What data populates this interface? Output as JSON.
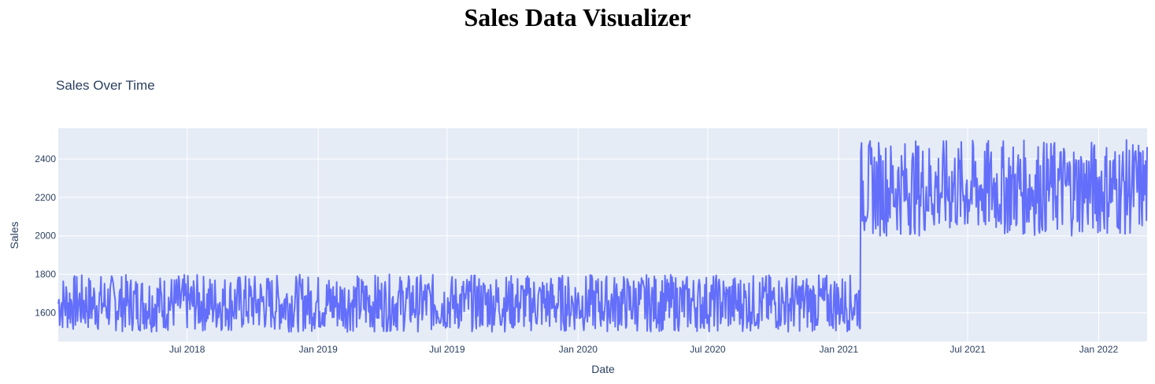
{
  "page": {
    "title": "Sales Data Visualizer"
  },
  "chart_data": {
    "type": "line",
    "title": "Sales Over Time",
    "xlabel": "Date",
    "ylabel": "Sales",
    "xlim": [
      "2018-01-01",
      "2022-03-10"
    ],
    "ylim": [
      1450,
      2560
    ],
    "grid": true,
    "legend": "none",
    "x_ticks": [
      {
        "date": "2018-07-01",
        "label": "Jul 2018"
      },
      {
        "date": "2019-01-01",
        "label": "Jan 2019"
      },
      {
        "date": "2019-07-01",
        "label": "Jul 2019"
      },
      {
        "date": "2020-01-01",
        "label": "Jan 2020"
      },
      {
        "date": "2020-07-01",
        "label": "Jul 2020"
      },
      {
        "date": "2021-01-01",
        "label": "Jan 2021"
      },
      {
        "date": "2021-07-01",
        "label": "Jul 2021"
      },
      {
        "date": "2022-01-01",
        "label": "Jan 2022"
      }
    ],
    "y_ticks": [
      1600,
      1800,
      2000,
      2200,
      2400
    ],
    "series": [
      {
        "color": "#636efa",
        "frequency": "daily",
        "segments": [
          {
            "start": "2018-01-01",
            "end": "2021-01-31",
            "min": 1500,
            "max": 1800
          },
          {
            "start": "2021-02-01",
            "end": "2022-03-10",
            "min": 2000,
            "max": 2500
          }
        ]
      }
    ],
    "colors": {
      "plot_background": "#e5ecf6",
      "grid": "#ffffff",
      "text": "#2a3f5f"
    }
  }
}
